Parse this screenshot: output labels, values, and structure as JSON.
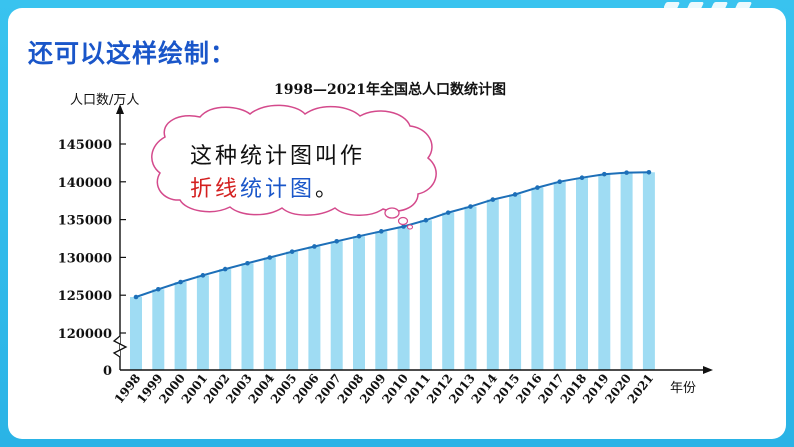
{
  "heading": "还可以这样绘制：",
  "bubble": {
    "line1": "这种统计图叫作",
    "line2_a": "折线",
    "line2_b": "统计图",
    "line2_c": "。",
    "accent_red": "#d42020",
    "accent_blue": "#1a56c9",
    "text_color": "#111111"
  },
  "colors": {
    "frame": "#2ab3e6",
    "bar": "#9fdcf3",
    "line": "#1d6fb8"
  },
  "chart_data": {
    "type": "bar",
    "overlay": "line",
    "title": "1998—2021年全国总人口数统计图",
    "ylabel": "人口数/万人",
    "xlabel": "年份",
    "categories": [
      "1998",
      "1999",
      "2000",
      "2001",
      "2002",
      "2003",
      "2004",
      "2005",
      "2006",
      "2007",
      "2008",
      "2009",
      "2010",
      "2011",
      "2012",
      "2013",
      "2014",
      "2015",
      "2016",
      "2017",
      "2018",
      "2019",
      "2020",
      "2021"
    ],
    "values": [
      124761,
      125786,
      126743,
      127627,
      128453,
      129227,
      129988,
      130756,
      131448,
      132129,
      132802,
      133450,
      134091,
      134916,
      135922,
      136726,
      137646,
      138326,
      139232,
      140011,
      140541,
      141008,
      141212,
      141260
    ],
    "yticks": [
      "145000",
      "140000",
      "135000",
      "130000",
      "125000",
      "120000",
      "0"
    ],
    "ylim": [
      117000,
      146000
    ],
    "axis_break": true,
    "grid": false
  }
}
